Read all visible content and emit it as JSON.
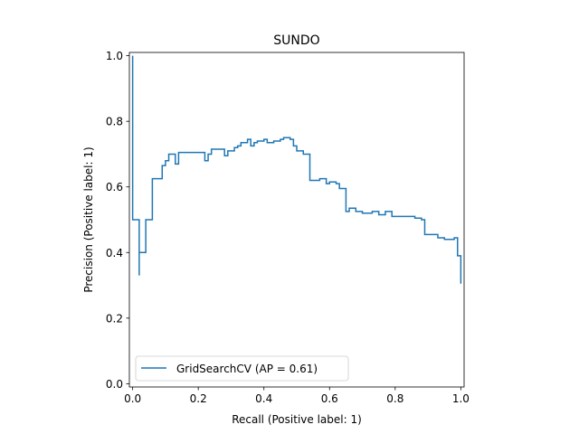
{
  "chart_data": {
    "type": "line",
    "title": "SUNDO",
    "xlabel": "Recall (Positive label: 1)",
    "ylabel": "Precision (Positive label: 1)",
    "xlim": [
      -0.01,
      1.01
    ],
    "ylim": [
      -0.01,
      1.01
    ],
    "xticks": [
      "0.0",
      "0.2",
      "0.4",
      "0.6",
      "0.8",
      "1.0"
    ],
    "yticks": [
      "0.0",
      "0.2",
      "0.4",
      "0.6",
      "0.8",
      "1.0"
    ],
    "grid": false,
    "legend_position": "lower-left",
    "series": [
      {
        "name": "GridSearchCV (AP = 0.61)",
        "color": "#1f77b4",
        "drawstyle": "steps-post",
        "x": [
          0.0,
          0.0,
          0.0,
          0.02,
          0.02,
          0.02,
          0.04,
          0.04,
          0.06,
          0.06,
          0.09,
          0.1,
          0.11,
          0.13,
          0.14,
          0.21,
          0.22,
          0.23,
          0.24,
          0.27,
          0.28,
          0.29,
          0.31,
          0.32,
          0.33,
          0.35,
          0.36,
          0.37,
          0.38,
          0.4,
          0.41,
          0.43,
          0.45,
          0.46,
          0.48,
          0.49,
          0.5,
          0.52,
          0.54,
          0.54,
          0.55,
          0.57,
          0.59,
          0.6,
          0.62,
          0.63,
          0.65,
          0.66,
          0.68,
          0.7,
          0.73,
          0.75,
          0.77,
          0.79,
          0.84,
          0.85,
          0.86,
          0.87,
          0.88,
          0.89,
          0.9,
          0.93,
          0.95,
          0.98,
          0.99,
          1.0
        ],
        "y": [
          1.0,
          0.5,
          0.5,
          0.5,
          0.33,
          0.4,
          0.5,
          0.5,
          0.625,
          0.625,
          0.665,
          0.68,
          0.7,
          0.67,
          0.705,
          0.705,
          0.68,
          0.7,
          0.715,
          0.715,
          0.695,
          0.71,
          0.72,
          0.725,
          0.735,
          0.745,
          0.725,
          0.735,
          0.74,
          0.745,
          0.735,
          0.74,
          0.745,
          0.75,
          0.745,
          0.725,
          0.71,
          0.7,
          0.665,
          0.62,
          0.62,
          0.625,
          0.61,
          0.615,
          0.61,
          0.595,
          0.525,
          0.535,
          0.525,
          0.52,
          0.525,
          0.515,
          0.525,
          0.51,
          0.51,
          0.51,
          0.505,
          0.505,
          0.5,
          0.455,
          0.455,
          0.445,
          0.44,
          0.445,
          0.39,
          0.305
        ]
      }
    ]
  }
}
